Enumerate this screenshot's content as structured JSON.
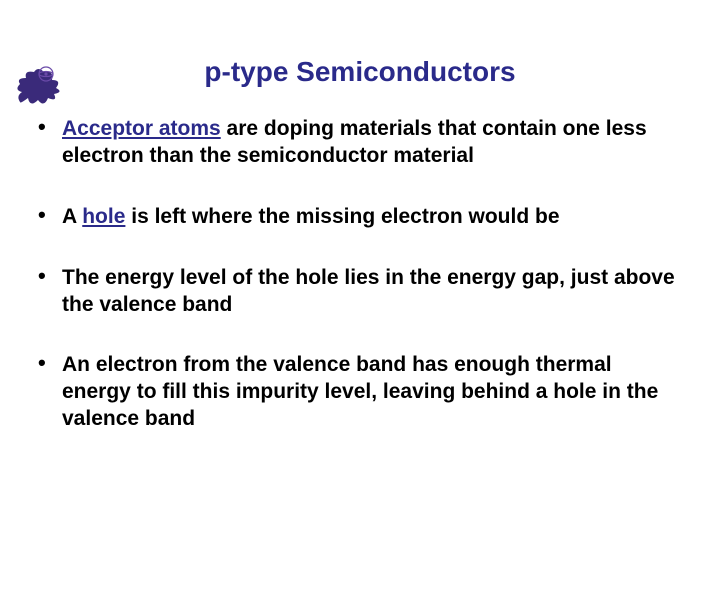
{
  "title": {
    "text": "p-type Semiconductors",
    "color": "#2a2a8a",
    "fontsize": 28
  },
  "body": {
    "fontsize": 21,
    "text_color": "#000000",
    "keyword_color": "#2a2a8a"
  },
  "bullets": [
    {
      "kw": "Acceptor atoms",
      "post": " are doping materials that contain one less electron than the semiconductor material"
    },
    {
      "pre": "A ",
      "kw": "hole",
      "post": " is left where the missing electron would be"
    },
    {
      "plain": "The energy level of the hole lies in the energy gap, just above the valence band"
    },
    {
      "plain": "An electron from the valence band has enough thermal energy to fill this impurity level, leaving behind a hole in the valence band"
    }
  ],
  "logo": {
    "body_color": "#3a2a7a",
    "accent_color": "#6a4aa8"
  }
}
